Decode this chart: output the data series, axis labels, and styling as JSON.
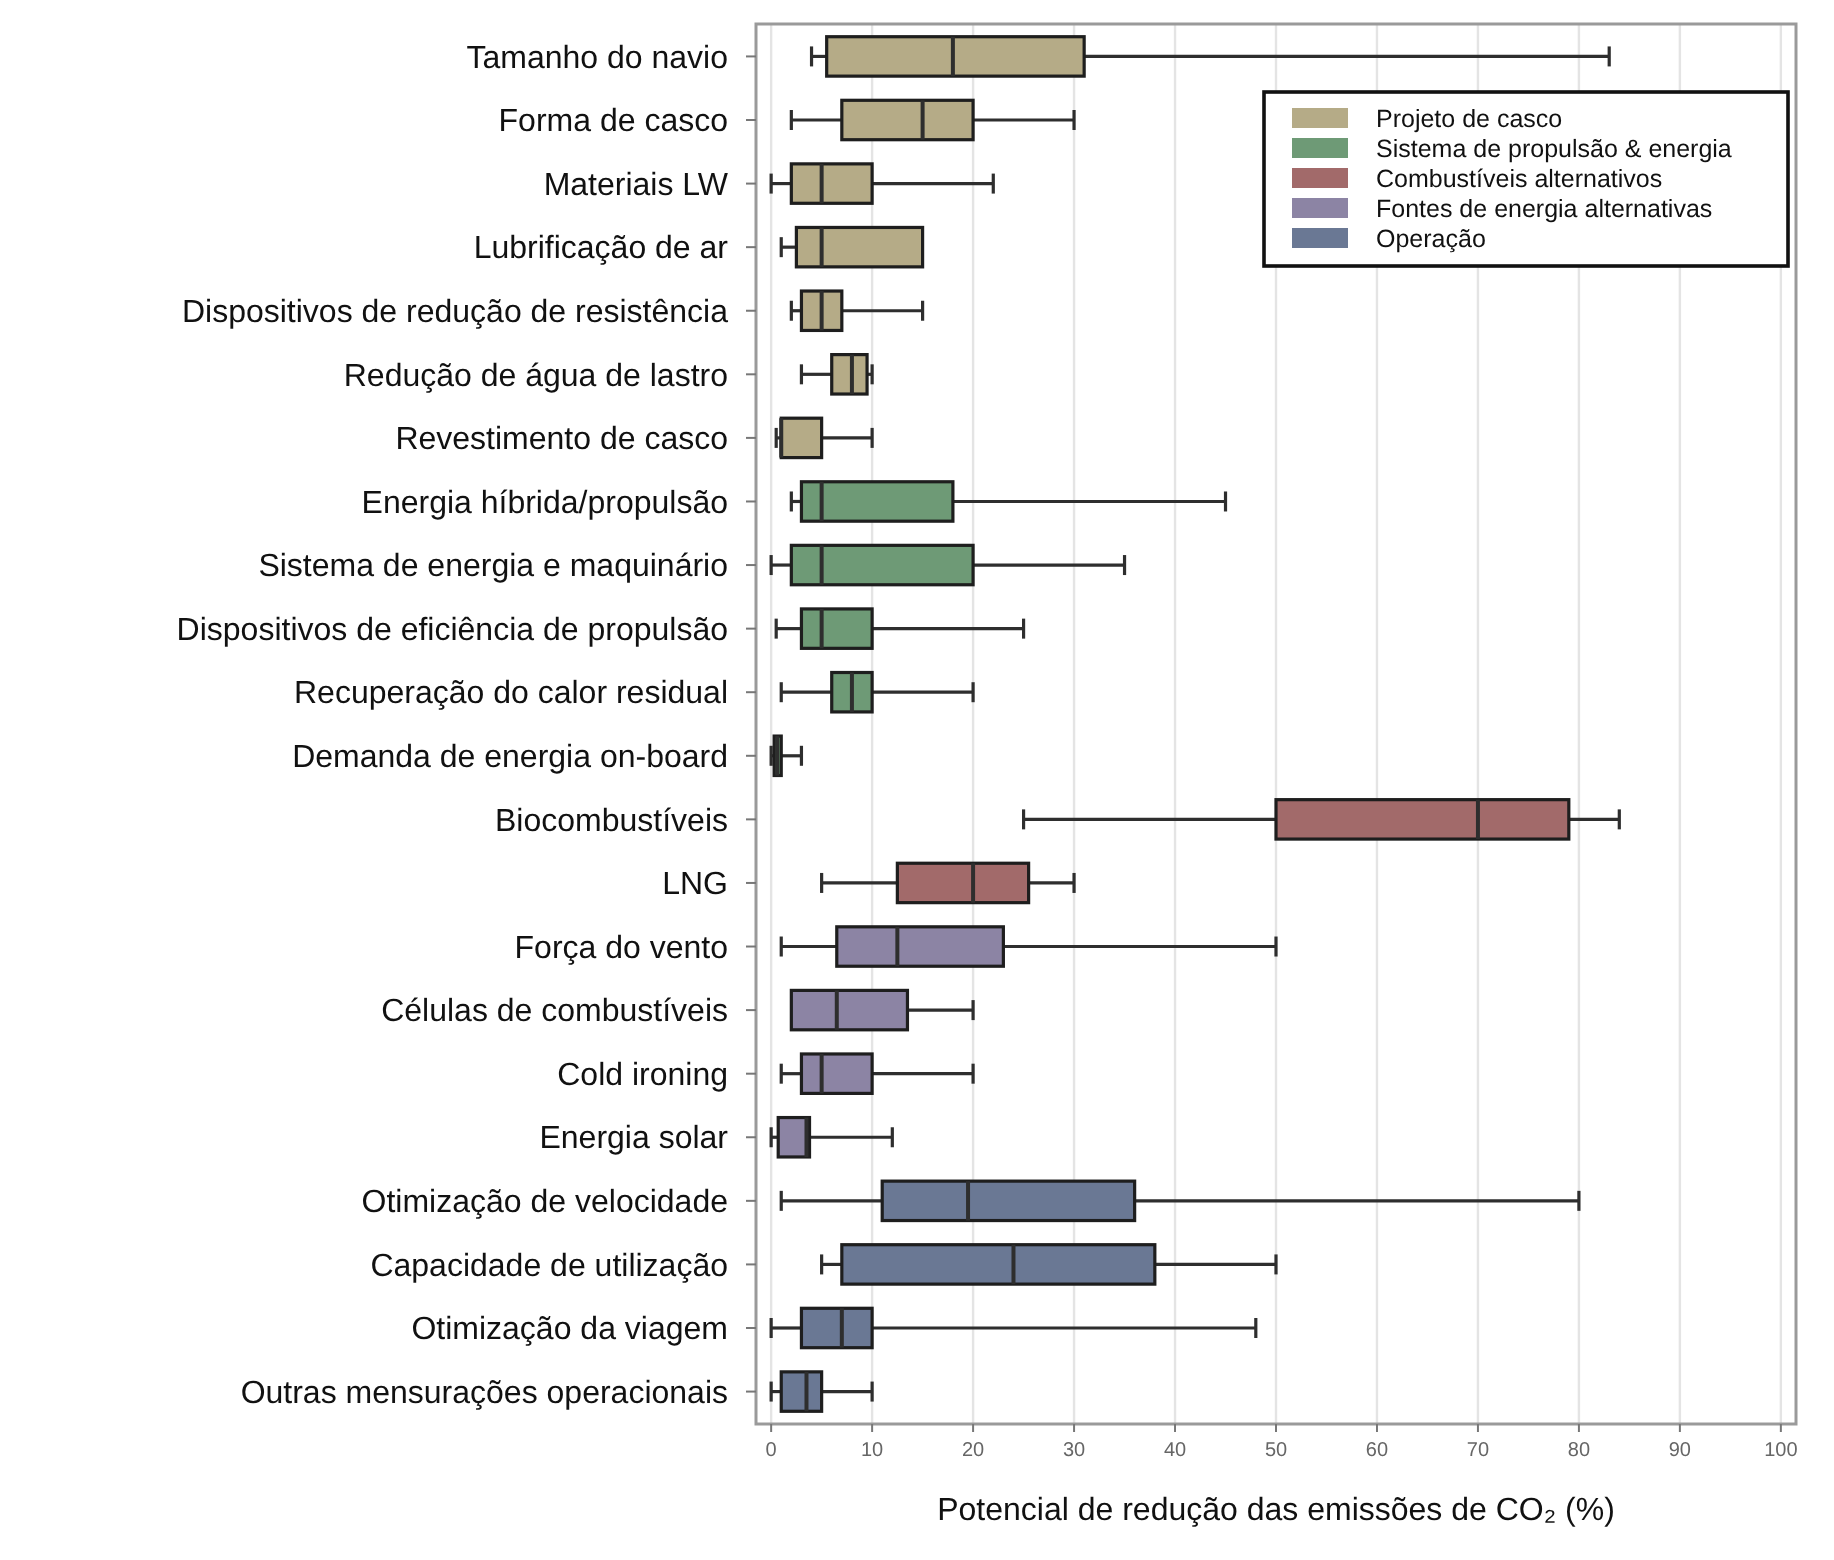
{
  "chart_data": {
    "type": "box",
    "orientation": "horizontal",
    "xlabel": "Potencial de redução das emissões de CO₂ (%)",
    "categories": [
      "Tamanho do navio",
      "Forma de casco",
      "Materiais LW",
      "Lubrificação de ar",
      "Dispositivos de redução de resistência",
      "Redução de água de lastro",
      "Revestimento de casco",
      "Energia híbrida/propulsão",
      "Sistema de energia e maquinário",
      "Dispositivos de eficiência de propulsão",
      "Recuperação do calor residual",
      "Demanda de energia on-board",
      "Biocombustíveis",
      "LNG",
      "Força do vento",
      "Células de combustíveis",
      "Cold ironing",
      "Energia solar",
      "Otimização de velocidade",
      "Capacidade de utilização",
      "Otimização da viagem",
      "Outras mensurações operacionais"
    ],
    "xlim": [
      -1.5,
      101.5
    ],
    "xticks": [
      0,
      10,
      20,
      30,
      40,
      50,
      60,
      70,
      80,
      90,
      100
    ],
    "grid": "x",
    "legend": "top right",
    "series": [
      {
        "name": "Projeto de casco",
        "color": "#b5ab87",
        "boxes": [
          {
            "low": 4,
            "q1": 5.5,
            "median": 18,
            "q3": 31,
            "high": 83
          },
          {
            "low": 2,
            "q1": 7,
            "median": 15,
            "q3": 20,
            "high": 30
          },
          {
            "low": 0,
            "q1": 2,
            "median": 5,
            "q3": 10,
            "high": 22
          },
          {
            "low": 1,
            "q1": 2.5,
            "median": 5,
            "q3": 15,
            "high": 15
          },
          {
            "low": 2,
            "q1": 3,
            "median": 5,
            "q3": 7,
            "high": 15
          },
          {
            "low": 3,
            "q1": 6,
            "median": 8,
            "q3": 9.5,
            "high": 10
          },
          {
            "low": 0.5,
            "q1": 1,
            "median": 1,
            "q3": 5,
            "high": 10
          },
          null,
          null,
          null,
          null,
          null,
          null,
          null,
          null,
          null,
          null,
          null,
          null,
          null,
          null,
          null
        ]
      },
      {
        "name": "Sistema de propulsão & energia",
        "color": "#6e9a76",
        "boxes": [
          null,
          null,
          null,
          null,
          null,
          null,
          null,
          {
            "low": 2,
            "q1": 3,
            "median": 5,
            "q3": 18,
            "high": 45
          },
          {
            "low": 0,
            "q1": 2,
            "median": 5,
            "q3": 20,
            "high": 35
          },
          {
            "low": 0.5,
            "q1": 3,
            "median": 5,
            "q3": 10,
            "high": 25
          },
          {
            "low": 1,
            "q1": 6,
            "median": 8,
            "q3": 10,
            "high": 20
          },
          {
            "low": 0,
            "q1": 0.3,
            "median": 0.6,
            "q3": 1,
            "high": 3
          },
          null,
          null,
          null,
          null,
          null,
          null,
          null,
          null,
          null,
          null
        ]
      },
      {
        "name": "Combustíveis alternativos",
        "color": "#a26a6a",
        "boxes": [
          null,
          null,
          null,
          null,
          null,
          null,
          null,
          null,
          null,
          null,
          null,
          null,
          {
            "low": 25,
            "q1": 50,
            "median": 70,
            "q3": 79,
            "high": 84
          },
          {
            "low": 5,
            "q1": 12.5,
            "median": 20,
            "q3": 25.5,
            "high": 30
          },
          null,
          null,
          null,
          null,
          null,
          null,
          null,
          null
        ]
      },
      {
        "name": "Fontes de energia alternativas",
        "color": "#8c84a4",
        "boxes": [
          null,
          null,
          null,
          null,
          null,
          null,
          null,
          null,
          null,
          null,
          null,
          null,
          null,
          null,
          {
            "low": 1,
            "q1": 6.5,
            "median": 12.5,
            "q3": 23,
            "high": 50
          },
          {
            "low": 2,
            "q1": 2,
            "median": 6.5,
            "q3": 13.5,
            "high": 20
          },
          {
            "low": 1,
            "q1": 3,
            "median": 5,
            "q3": 10,
            "high": 20
          },
          {
            "low": 0,
            "q1": 0.7,
            "median": 3.5,
            "q3": 3.8,
            "high": 12
          },
          null,
          null,
          null,
          null
        ]
      },
      {
        "name": "Operação",
        "color": "#6a7894",
        "boxes": [
          null,
          null,
          null,
          null,
          null,
          null,
          null,
          null,
          null,
          null,
          null,
          null,
          null,
          null,
          null,
          null,
          null,
          null,
          {
            "low": 1,
            "q1": 11,
            "median": 19.5,
            "q3": 36,
            "high": 80
          },
          {
            "low": 5,
            "q1": 7,
            "median": 24,
            "q3": 38,
            "high": 50
          },
          {
            "low": 0,
            "q1": 3,
            "median": 7,
            "q3": 10,
            "high": 48
          },
          {
            "low": 0,
            "q1": 1,
            "median": 3.5,
            "q3": 5,
            "high": 10
          }
        ]
      }
    ]
  }
}
